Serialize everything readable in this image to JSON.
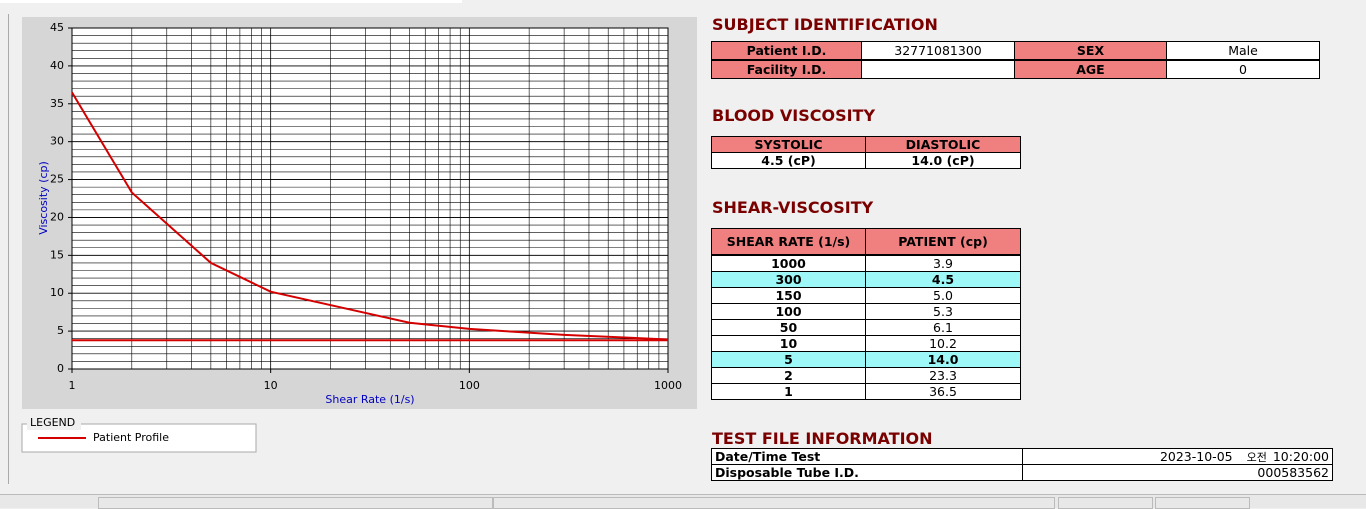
{
  "chart_data": {
    "type": "line",
    "x_label": "Shear Rate (1/s)",
    "y_label": "Viscosity (cp)",
    "xlog": true,
    "xlim": [
      1,
      1000
    ],
    "xticks": [
      1,
      10,
      100,
      1000
    ],
    "ylim": [
      0,
      45
    ],
    "yticks": [
      0,
      5,
      10,
      15,
      20,
      25,
      30,
      35,
      40,
      45
    ],
    "grid": true,
    "minor_grid": true,
    "legend_title": "LEGEND",
    "series": [
      {
        "name": "Patient Profile",
        "color": "#d40000",
        "x": [
          1,
          2,
          5,
          10,
          50,
          100,
          150,
          300,
          1000
        ],
        "values": [
          36.5,
          23.3,
          14.0,
          10.2,
          6.1,
          5.3,
          5.0,
          4.5,
          3.9
        ]
      },
      {
        "color": "#d40000",
        "x": [
          1,
          1000
        ],
        "values": [
          3.8,
          3.8
        ]
      }
    ]
  },
  "subject": {
    "title": "SUBJECT IDENTIFICATION",
    "patient_id": {
      "label": "Patient I.D.",
      "value": "32771081300"
    },
    "sex": {
      "label": "SEX",
      "value": "Male"
    },
    "facility_id": {
      "label": "Facility I.D."
    },
    "age": {
      "label": "AGE",
      "value": 0
    }
  },
  "blood_viscosity": {
    "title": "BLOOD VISCOSITY",
    "headers": [
      "SYSTOLIC",
      "DIASTOLIC"
    ],
    "values": [
      "4.5 (cP)",
      "14.0 (cP)"
    ]
  },
  "shear_viscosity": {
    "title": "SHEAR-VISCOSITY",
    "headers": [
      "SHEAR RATE (1/s)",
      "PATIENT (cp)"
    ],
    "rows": [
      {
        "rate": "1000",
        "patient": "3.9"
      },
      {
        "rate": "300",
        "patient": "4.5",
        "highlight": true
      },
      {
        "rate": "150",
        "patient": "5.0"
      },
      {
        "rate": "100",
        "patient": "5.3"
      },
      {
        "rate": "50",
        "patient": "6.1"
      },
      {
        "rate": "10",
        "patient": "10.2"
      },
      {
        "rate": "5",
        "patient": "14.0",
        "highlight": true
      },
      {
        "rate": "2",
        "patient": "23.3"
      },
      {
        "rate": "1",
        "patient": "36.5"
      }
    ]
  },
  "test_file": {
    "title": "TEST FILE INFORMATION",
    "date_time": {
      "label": "Date/Time Test",
      "date": "2023-10-05",
      "ampm": "오전",
      "time": "10:20:00"
    },
    "tube_id": {
      "label": "Disposable Tube I.D.",
      "value": "000583562"
    }
  }
}
